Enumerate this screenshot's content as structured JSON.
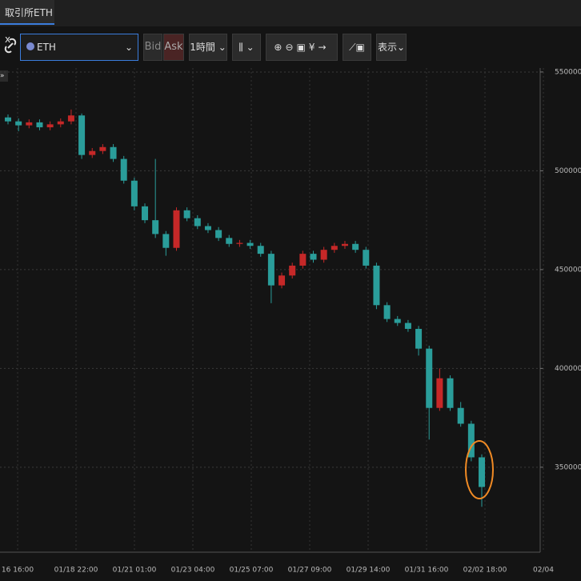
{
  "tab": {
    "title": "取引所ETH",
    "close": "x"
  },
  "toolbar": {
    "symbol": "ETH",
    "bid": "Bid",
    "ask": "Ask",
    "interval": "1時間",
    "display": "表示"
  },
  "chart_data": {
    "type": "candlestick",
    "x_labels": [
      "16 16:00",
      "01/18 22:00",
      "01/21 01:00",
      "01/23 04:00",
      "01/25 07:00",
      "01/27 09:00",
      "01/29 14:00",
      "01/31 16:00",
      "02/02 18:00",
      "02/04"
    ],
    "open": [
      527000,
      525000,
      523000,
      524500,
      522000,
      523500,
      525000,
      528000,
      508000,
      510000,
      512000,
      506000,
      495000,
      482000,
      475000,
      468000,
      461000,
      480000,
      476000,
      472000,
      470000,
      466000,
      463000,
      463500,
      462000,
      458000,
      442000,
      447000,
      452000,
      458000,
      455000,
      460000,
      462000,
      463000,
      460000,
      452000,
      432000,
      425000,
      423000,
      420000,
      410000,
      380000,
      395000,
      380000,
      372000,
      355000
    ],
    "high": [
      528500,
      526500,
      526000,
      526000,
      525000,
      526500,
      531000,
      529000,
      511500,
      513500,
      513500,
      507500,
      496500,
      483500,
      506000,
      469500,
      481500,
      481500,
      477500,
      473500,
      471500,
      467500,
      465000,
      465000,
      463500,
      459500,
      448500,
      453500,
      459500,
      459500,
      461500,
      463500,
      464500,
      464500,
      461500,
      453500,
      433500,
      426500,
      424500,
      421500,
      411500,
      400000,
      396500,
      383000,
      373500,
      356500
    ],
    "low": [
      523500,
      520000,
      521500,
      520500,
      520500,
      522000,
      523500,
      506000,
      506500,
      508500,
      504500,
      493500,
      480000,
      473500,
      466000,
      457000,
      459500,
      474500,
      470500,
      468500,
      464500,
      461500,
      461500,
      460500,
      456500,
      433000,
      440500,
      445500,
      450500,
      453500,
      453500,
      458500,
      460500,
      458500,
      450500,
      430000,
      423500,
      421500,
      418500,
      406500,
      364000,
      378500,
      378500,
      370500,
      353000,
      330000
    ],
    "close": [
      525000,
      523000,
      524500,
      522000,
      523500,
      525000,
      528000,
      508000,
      510000,
      512000,
      506000,
      495000,
      482000,
      475000,
      468000,
      461000,
      480000,
      476000,
      472000,
      470000,
      466000,
      463000,
      463500,
      462000,
      458000,
      442000,
      447000,
      452000,
      458000,
      455000,
      460000,
      462000,
      463000,
      460000,
      452000,
      432000,
      425000,
      423000,
      420000,
      410000,
      380000,
      395000,
      380000,
      372000,
      355000,
      340000
    ],
    "ylim": [
      307000,
      552000
    ],
    "yticks": [
      350000,
      400000,
      450000,
      500000,
      550000
    ],
    "up_color": "#c62828",
    "down_color": "#2a9d9a",
    "grid": true
  }
}
